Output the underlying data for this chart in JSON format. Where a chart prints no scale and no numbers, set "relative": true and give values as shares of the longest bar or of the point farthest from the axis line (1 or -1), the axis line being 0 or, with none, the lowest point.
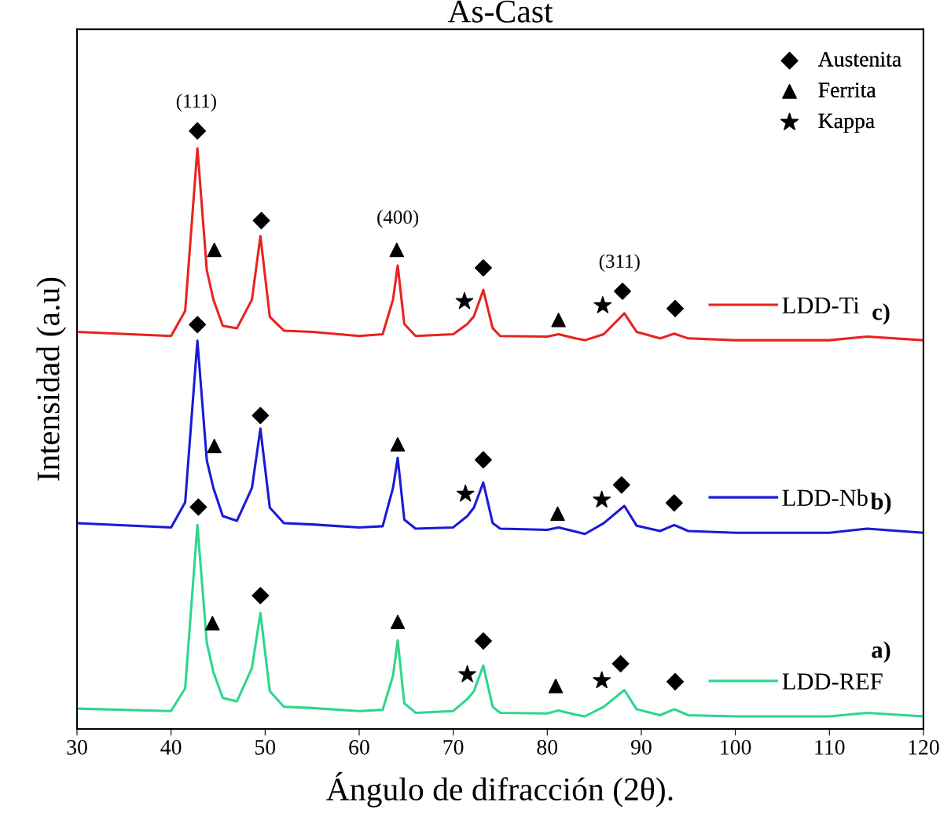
{
  "chart_data": {
    "type": "line",
    "title": "As-Cast",
    "xlabel": "Ángulo de difracción (2θ).",
    "ylabel": "Intensidad (a.u)",
    "relative": true,
    "xlim": [
      30,
      120
    ],
    "xticks": [
      30,
      40,
      50,
      60,
      70,
      80,
      90,
      100,
      110,
      120
    ],
    "legend": "top right",
    "x": [
      30,
      40,
      41.5,
      42.8,
      43.8,
      44.5,
      45.5,
      47,
      48.6,
      49.5,
      50.5,
      52,
      55,
      60,
      62.5,
      63.6,
      64.1,
      64.8,
      66,
      70,
      71.5,
      72.2,
      73.2,
      74.2,
      75,
      80,
      81.2,
      83,
      84,
      86,
      88.2,
      89.5,
      92,
      93.5,
      95,
      100,
      110,
      114,
      120
    ],
    "series": [
      {
        "name": "LDD-Ti",
        "color": "#e8231f",
        "values": [
          0.664,
          0.657,
          0.699,
          0.971,
          0.767,
          0.718,
          0.674,
          0.67,
          0.718,
          0.824,
          0.689,
          0.666,
          0.664,
          0.657,
          0.66,
          0.718,
          0.775,
          0.677,
          0.657,
          0.66,
          0.677,
          0.69,
          0.734,
          0.67,
          0.657,
          0.656,
          0.66,
          0.653,
          0.65,
          0.66,
          0.695,
          0.664,
          0.653,
          0.661,
          0.653,
          0.65,
          0.65,
          0.656,
          0.65
        ]
      },
      {
        "name": "LDD-Nb",
        "color": "#1a1ad6",
        "values": [
          0.344,
          0.337,
          0.379,
          0.649,
          0.449,
          0.403,
          0.356,
          0.348,
          0.403,
          0.502,
          0.37,
          0.344,
          0.342,
          0.337,
          0.339,
          0.403,
          0.453,
          0.35,
          0.335,
          0.337,
          0.356,
          0.37,
          0.412,
          0.344,
          0.335,
          0.333,
          0.337,
          0.33,
          0.326,
          0.344,
          0.373,
          0.34,
          0.331,
          0.341,
          0.331,
          0.328,
          0.328,
          0.335,
          0.328
        ]
      },
      {
        "name": "LDD-REF",
        "color": "#2fd68c",
        "values": [
          0.034,
          0.03,
          0.068,
          0.341,
          0.144,
          0.095,
          0.052,
          0.046,
          0.102,
          0.194,
          0.063,
          0.037,
          0.035,
          0.03,
          0.032,
          0.089,
          0.148,
          0.043,
          0.027,
          0.03,
          0.05,
          0.063,
          0.106,
          0.037,
          0.027,
          0.026,
          0.031,
          0.024,
          0.021,
          0.037,
          0.065,
          0.033,
          0.023,
          0.033,
          0.023,
          0.021,
          0.021,
          0.027,
          0.021
        ]
      },
      {
        "name": "Austenita",
        "type": "scatter",
        "marker": "diamond",
        "color": "#000000",
        "x": [
          42.8,
          49.6,
          73.2,
          88.0,
          93.6,
          42.8,
          49.5,
          73.2,
          87.9,
          93.5,
          42.9,
          49.5,
          73.2,
          87.8,
          93.6
        ],
        "values": [
          1.0,
          0.85,
          0.771,
          0.732,
          0.703,
          0.676,
          0.524,
          0.45,
          0.408,
          0.378,
          0.371,
          0.223,
          0.147,
          0.109,
          0.079
        ]
      },
      {
        "name": "Ferrita",
        "type": "scatter",
        "marker": "triangle",
        "color": "#000000",
        "x": [
          44.6,
          64.0,
          81.2,
          44.6,
          64.1,
          81.1,
          44.4,
          64.1,
          80.9
        ],
        "values": [
          0.801,
          0.801,
          0.684,
          0.473,
          0.476,
          0.36,
          0.177,
          0.179,
          0.072
        ]
      },
      {
        "name": "Kappa",
        "type": "scatter",
        "marker": "star",
        "color": "#000000",
        "x": [
          71.2,
          85.9,
          71.3,
          85.8,
          71.5,
          85.8
        ],
        "values": [
          0.715,
          0.708,
          0.393,
          0.383,
          0.091,
          0.081
        ]
      }
    ],
    "annotations": [
      "(111)",
      "(400)",
      "(311)",
      "c)",
      "b)",
      "a)"
    ]
  }
}
